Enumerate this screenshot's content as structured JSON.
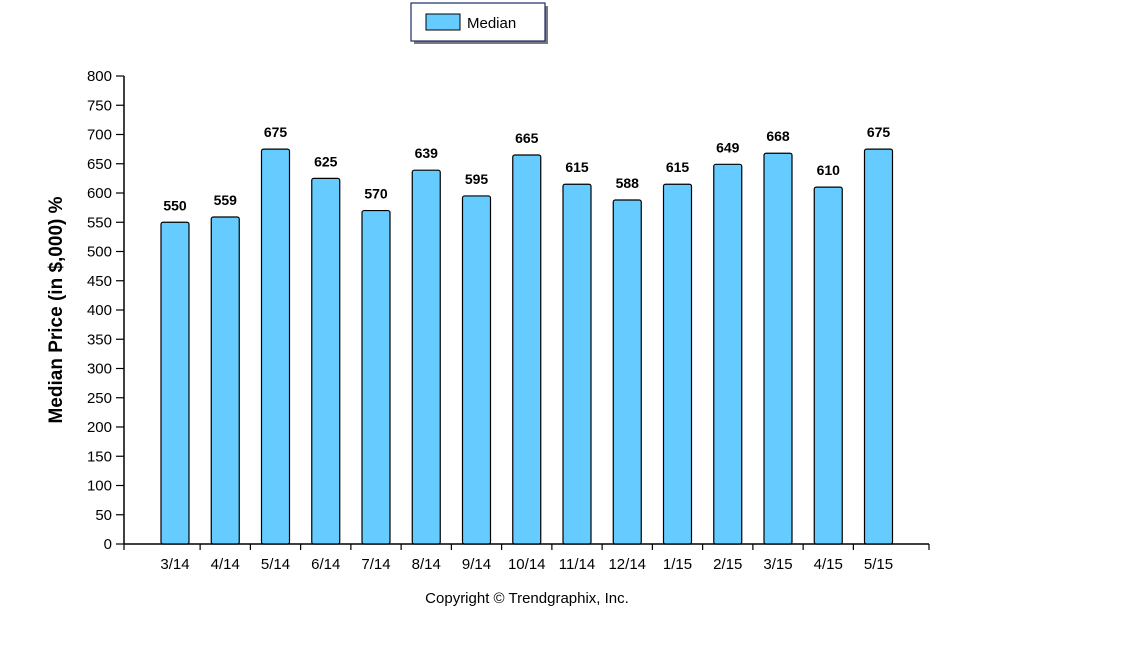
{
  "legend": {
    "label": "Median",
    "swatch_color": "#66ccff",
    "placement": "top-center"
  },
  "footer": {
    "copyright": "Copyright © Trendgraphix, Inc."
  },
  "chart_data": {
    "type": "bar",
    "categories": [
      "3/14",
      "4/14",
      "5/14",
      "6/14",
      "7/14",
      "8/14",
      "9/14",
      "10/14",
      "11/14",
      "12/14",
      "1/15",
      "2/15",
      "3/15",
      "4/15",
      "5/15"
    ],
    "series": [
      {
        "name": "Median",
        "values": [
          550,
          559,
          675,
          625,
          570,
          639,
          595,
          665,
          615,
          588,
          615,
          649,
          668,
          610,
          675
        ],
        "color": "#66ccff"
      }
    ],
    "ylabel": "Median Price (in $,000) %",
    "xlabel": "",
    "ylim": [
      0,
      800
    ],
    "yticks": [
      0,
      50,
      100,
      150,
      200,
      250,
      300,
      350,
      400,
      450,
      500,
      550,
      600,
      650,
      700,
      750,
      800
    ],
    "grid": false,
    "data_labels": true
  }
}
